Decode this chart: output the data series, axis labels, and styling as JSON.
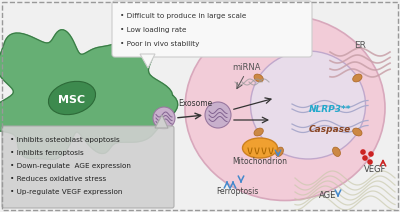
{
  "bg_color": "#f0f0f0",
  "border_color": "#999999",
  "msc_cell_color": "#5aaa6a",
  "msc_cell_edge": "#3a7a45",
  "msc_nucleus_color": "#3d8a4e",
  "msc_nucleus_edge": "#2d6a38",
  "msc_label": "MSC",
  "exosome_color": "#c8b0cc",
  "exosome_edge": "#9a78a0",
  "exosome_label": "Exosome",
  "target_cell_color": "#f2ccd8",
  "target_cell_edge": "#d8a8bc",
  "nucleus_color": "#e8dcea",
  "nucleus_edge": "#c0a8cc",
  "er_label": "ER",
  "mirna_label": "miRNA",
  "nlrp3_label": "NLRP3**",
  "caspase_label": "Caspase",
  "mito_label": "Mitochondrion",
  "ferroptosis_label": "Ferroptosis",
  "vegf_label": "VEGF",
  "age_label": "AGE",
  "speech_bg": "#f8f8f8",
  "speech_edge": "#cccccc",
  "speech_lines": [
    "• Difficult to produce in large scale",
    "• Low loading rate",
    "• Poor in vivo stability"
  ],
  "bottom_bg": "#d0d0d0",
  "bottom_edge": "#aaaaaa",
  "bottom_lines": [
    "• Inhibits osteoblast apoptosis",
    "• Inhibits ferroptosis",
    "• Down-regulate  AGE expression",
    "• Reduces oxidative stress",
    "• Up-regulate VEGF expression"
  ],
  "arrow_color": "#333333",
  "nlrp3_color": "#22aacc",
  "caspase_color": "#884422",
  "up_arrow_color": "#4488cc",
  "down_arrow_color": "#4488cc",
  "vegf_dot_color": "#cc2222",
  "vegf_arrow_color": "#cc2222",
  "age_arrow_color": "#4488cc",
  "mito_color": "#f0a030",
  "mito_edge": "#cc8020",
  "bone_color": "#d8d8c0",
  "dna_color": "#aaaacc"
}
